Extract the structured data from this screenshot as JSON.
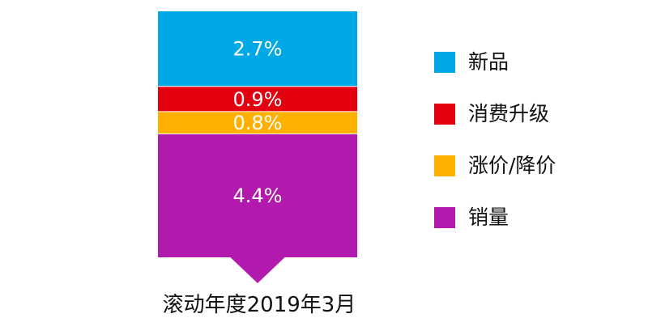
{
  "chart_data": {
    "type": "bar",
    "orientation": "stacked",
    "categories": [
      "滚动年度2019年3月"
    ],
    "series": [
      {
        "name": "新品",
        "values": [
          2.7
        ],
        "color": "#00A9E6",
        "data_label": "2.7%"
      },
      {
        "name": "消费升级",
        "values": [
          0.9
        ],
        "color": "#E3000F",
        "data_label": "0.9%"
      },
      {
        "name": "涨价/降价",
        "values": [
          0.8
        ],
        "color": "#FFB000",
        "data_label": "0.8%"
      },
      {
        "name": "销量",
        "values": [
          4.4
        ],
        "color": "#B21AAE",
        "data_label": "4.4%"
      }
    ],
    "unit": "%",
    "legend_position": "right",
    "grid": false
  }
}
